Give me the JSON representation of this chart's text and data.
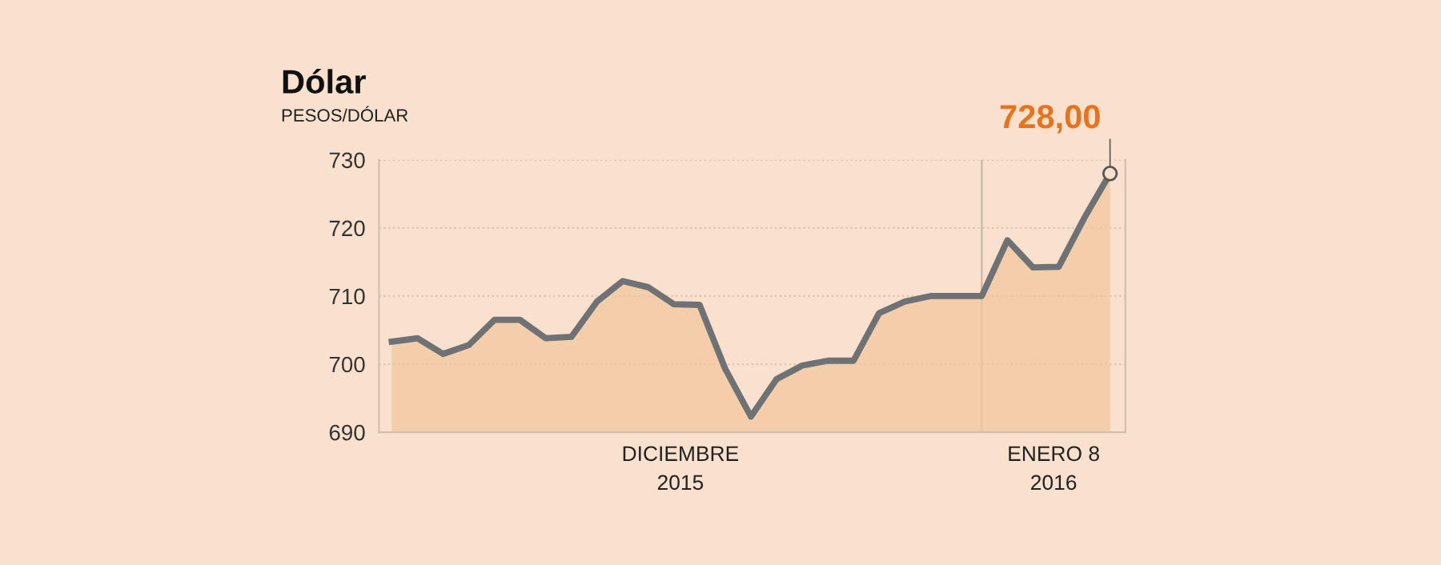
{
  "chart_data": {
    "type": "area",
    "title": "Dólar",
    "subtitle": "PESOS/DÓLAR",
    "categories": [
      null,
      null,
      null,
      null,
      null,
      null,
      null,
      null,
      null,
      null,
      null,
      null,
      null,
      null,
      null,
      null,
      null,
      null,
      null,
      null,
      null,
      null,
      null,
      null,
      null,
      null,
      null,
      null,
      null
    ],
    "series": [
      {
        "color": "#6f7275",
        "values": [
          703.3,
          703.8,
          701.5,
          702.8,
          706.5,
          706.5,
          703.8,
          704.0,
          709.2,
          712.2,
          711.3,
          708.8,
          708.7,
          699.3,
          692.3,
          697.8,
          699.8,
          700.5,
          700.5,
          707.5,
          709.2,
          710.0,
          710.0,
          710.0,
          718.2,
          714.2,
          714.3,
          721.5,
          728.0
        ],
        "value_labels": [
          null,
          null,
          null,
          null,
          null,
          null,
          null,
          null,
          null,
          null,
          null,
          null,
          null,
          null,
          null,
          null,
          null,
          null,
          null,
          null,
          null,
          null,
          null,
          null,
          null,
          null,
          null,
          null,
          "728,00"
        ]
      }
    ],
    "ylim": [
      690,
      730
    ],
    "yticks": [
      690,
      700,
      710,
      720,
      730
    ],
    "grid": "y",
    "annotations": [
      "DICIEMBRE\n2015",
      "ENERO 8\n2016"
    ]
  }
}
